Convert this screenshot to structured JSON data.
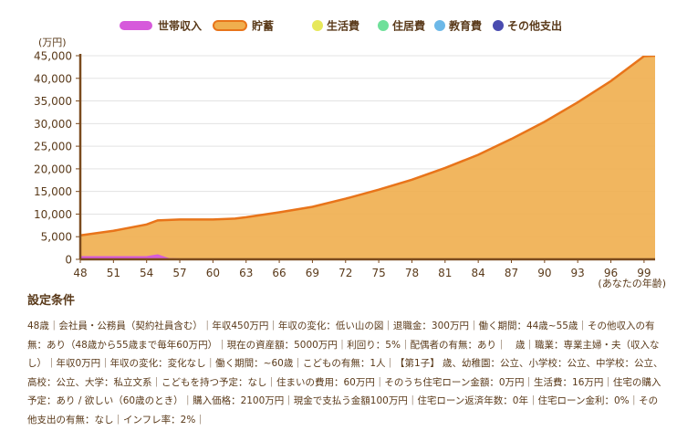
{
  "chart_data": {
    "type": "area",
    "unit_label": "(万円)",
    "x_axis_note": "(あなたの年齢)",
    "x_ticks": [
      "48",
      "51",
      "54",
      "57",
      "60",
      "63",
      "66",
      "69",
      "72",
      "75",
      "78",
      "81",
      "84",
      "87",
      "90",
      "93",
      "96",
      "99"
    ],
    "y_ticks": [
      "0",
      "5,000",
      "10,000",
      "15,000",
      "20,000",
      "25,000",
      "30,000",
      "35,000",
      "40,000",
      "45,000"
    ],
    "ylim": [
      0,
      45000
    ],
    "xlim": [
      48,
      100
    ],
    "legend": [
      {
        "name": "世帯収入",
        "color": "#d65adb",
        "marker": "pill"
      },
      {
        "name": "貯蓄",
        "color": "#f0ae4e",
        "marker": "pill-outline"
      },
      {
        "name": "生活費",
        "color": "#e7e85a",
        "marker": "dot"
      },
      {
        "name": "住居費",
        "color": "#6fe09a",
        "marker": "dot"
      },
      {
        "name": "教育費",
        "color": "#6cb8e8",
        "marker": "dot"
      },
      {
        "name": "その他支出",
        "color": "#4a4cb0",
        "marker": "dot"
      }
    ],
    "series": [
      {
        "name": "貯蓄",
        "fill": "#f0ae4e",
        "stroke": "#e8741a",
        "x": [
          48,
          51,
          54,
          55,
          57,
          60,
          62,
          63,
          66,
          69,
          72,
          75,
          78,
          81,
          84,
          87,
          90,
          93,
          96,
          99,
          100
        ],
        "y": [
          5300,
          6300,
          7700,
          8600,
          8800,
          8800,
          9000,
          9300,
          10400,
          11600,
          13400,
          15400,
          17600,
          20200,
          23100,
          26600,
          30400,
          34700,
          39400,
          44900,
          46800
        ]
      },
      {
        "name": "世帯収入",
        "fill": "#d65adb",
        "stroke": "#d65adb",
        "x": [
          48,
          51,
          54,
          55,
          56,
          57,
          60,
          63,
          66,
          69,
          72,
          75,
          78,
          81,
          84,
          87,
          90,
          93,
          96,
          99,
          100
        ],
        "y": [
          510,
          510,
          510,
          900,
          80,
          0,
          0,
          0,
          0,
          0,
          0,
          0,
          0,
          0,
          0,
          0,
          0,
          0,
          0,
          0,
          0
        ]
      }
    ]
  },
  "conditions": {
    "title": "設定条件",
    "text": "48歳｜会社員・公務員（契約社員含む）｜年収450万円｜年収の変化：低い山の図｜退職金：300万円｜働く期間：44歳~55歳｜その他収入の有無：あり（48歳から55歳まで毎年60万円）｜現在の資産額：5000万円｜利回り：5%｜配偶者の有無：あり｜　歳｜職業：専業主婦・夫（収入なし）｜年収0万円｜年収の変化：変化なし｜働く期間：~60歳｜こどもの有無：1人｜【第1子】 歳、幼稚園：公立、小学校：公立、中学校：公立、高校：公立、大学：私立文系｜こどもを持つ予定：なし｜住まいの費用：60万円｜そのうち住宅ローン金額：0万円｜生活費：16万円｜住宅の購入予定：あり / 欲しい（60歳のとき）｜購入価格：2100万円｜現金で支払う金額100万円｜住宅ローン返済年数：0年｜住宅ローン金利：0%｜その他支出の有無：なし｜インフレ率：2%｜"
  }
}
